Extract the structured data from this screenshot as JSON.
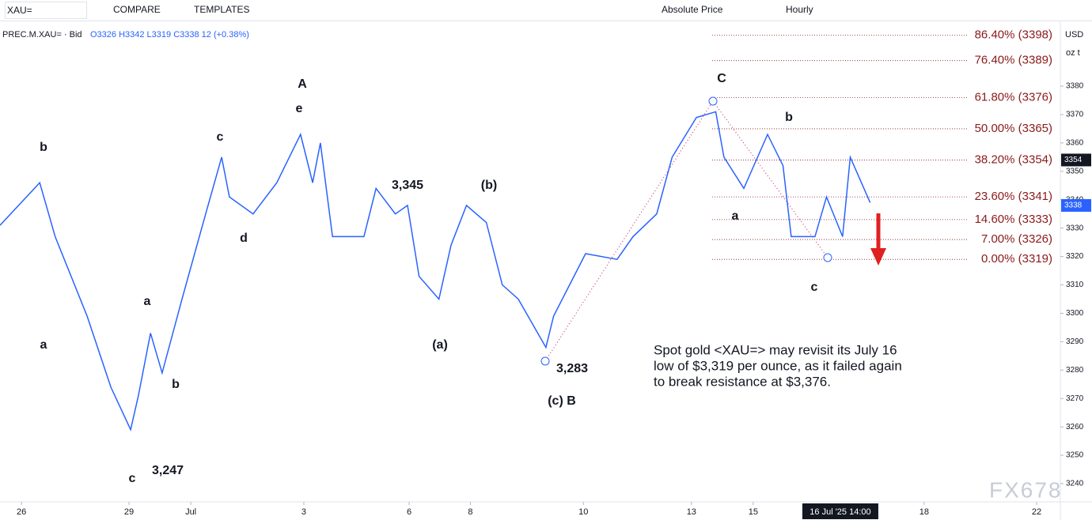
{
  "toolbar": {
    "symbol": "XAU=",
    "compare": "COMPARE",
    "templates": "TEMPLATES",
    "price_mode": "Absolute Price",
    "interval": "Hourly"
  },
  "legend": {
    "instrument": "PREC.M.XAU= · Bid",
    "ohlc": "O3326 H3342 L3319 C3338 12 (+0.38%)"
  },
  "axis_units": {
    "currency": "USD",
    "unit": "oz t"
  },
  "watermark": "FX678",
  "chart_data": {
    "type": "line",
    "series": [
      {
        "name": "PREC.M.XAU= · Bid",
        "color": "#2962ff",
        "x": [
          -0.39,
          0.33,
          0.61,
          1.19,
          1.62,
          1.98,
          2.12,
          2.34,
          2.55,
          2.91,
          3.34,
          3.63,
          3.77,
          4.2,
          4.63,
          5.06,
          5.28,
          5.42,
          5.64,
          6.21,
          6.43,
          6.78,
          7.0,
          7.21,
          7.57,
          7.79,
          8.07,
          8.43,
          8.72,
          9.01,
          9.51,
          9.65,
          10.23,
          10.8,
          11.09,
          11.52,
          11.8,
          12.24,
          12.59,
          12.74,
          13.1,
          13.53,
          13.81,
          13.96,
          14.39,
          14.6,
          14.89,
          15.03,
          15.39
        ],
        "values": [
          3331,
          3346,
          3327,
          3299,
          3274,
          3259,
          3271,
          3293,
          3279,
          3305,
          3335,
          3355,
          3341,
          3335,
          3346,
          3363,
          3346,
          3360,
          3327,
          3327,
          3344,
          3335,
          3338,
          3313,
          3305,
          3324,
          3338,
          3332,
          3310,
          3305,
          3288,
          3299,
          3321,
          3319,
          3327,
          3335,
          3355,
          3369,
          3371,
          3355,
          3344,
          3363,
          3352,
          3327,
          3327,
          3341,
          3327,
          3355,
          3339
        ]
      }
    ],
    "ylim": [
      3233.6,
      3402
    ],
    "yticks": [
      3240,
      3250,
      3260,
      3270,
      3280,
      3290,
      3300,
      3310,
      3320,
      3330,
      3340,
      3350,
      3360,
      3370,
      3380
    ],
    "xlim": [
      -0.39,
      18.84
    ],
    "xticks": [
      {
        "value": 0,
        "label": "26"
      },
      {
        "value": 1.95,
        "label": "29"
      },
      {
        "value": 3.07,
        "label": "Jul"
      },
      {
        "value": 5.12,
        "label": "3"
      },
      {
        "value": 7.03,
        "label": "6"
      },
      {
        "value": 8.14,
        "label": "8"
      },
      {
        "value": 10.19,
        "label": "10"
      },
      {
        "value": 12.15,
        "label": "13"
      },
      {
        "value": 13.27,
        "label": "15"
      },
      {
        "value": 16.37,
        "label": "18"
      },
      {
        "value": 18.41,
        "label": "22"
      }
    ],
    "crosshair": {
      "value": 14.85,
      "label": "16 Jul '25  14:00"
    },
    "price_tags": [
      {
        "value": 3354,
        "label": "3354",
        "color": "#131722"
      },
      {
        "value": 3338,
        "label": "3338",
        "color": "#2962ff"
      }
    ],
    "fib_levels": [
      {
        "value": 3398,
        "label": "86.40% (3398)"
      },
      {
        "value": 3389,
        "label": "76.40% (3389)"
      },
      {
        "value": 3376,
        "label": "61.80% (3376)"
      },
      {
        "value": 3365,
        "label": "50.00% (3365)"
      },
      {
        "value": 3354,
        "label": "38.20% (3354)"
      },
      {
        "value": 3341,
        "label": "23.60% (3341)"
      },
      {
        "value": 3333,
        "label": "14.60% (3333)"
      },
      {
        "value": 3326,
        "label": "7.00% (3326)"
      },
      {
        "value": 3319,
        "label": "0.00% (3319)"
      }
    ],
    "fib_color": "#8b1a1a",
    "annotations": [
      "b",
      "a",
      "c",
      "3,247",
      "a",
      "b",
      "c",
      "d",
      "A",
      "e",
      "3,345",
      "(a)",
      "(b)",
      "3,283",
      "(c) B",
      "C",
      "b",
      "a",
      "c"
    ],
    "note": [
      "Spot gold <XAU=> may revisit its July 16",
      "low of $3,319 per ounce, as it failed again",
      "to break resistance at $3,376."
    ]
  }
}
